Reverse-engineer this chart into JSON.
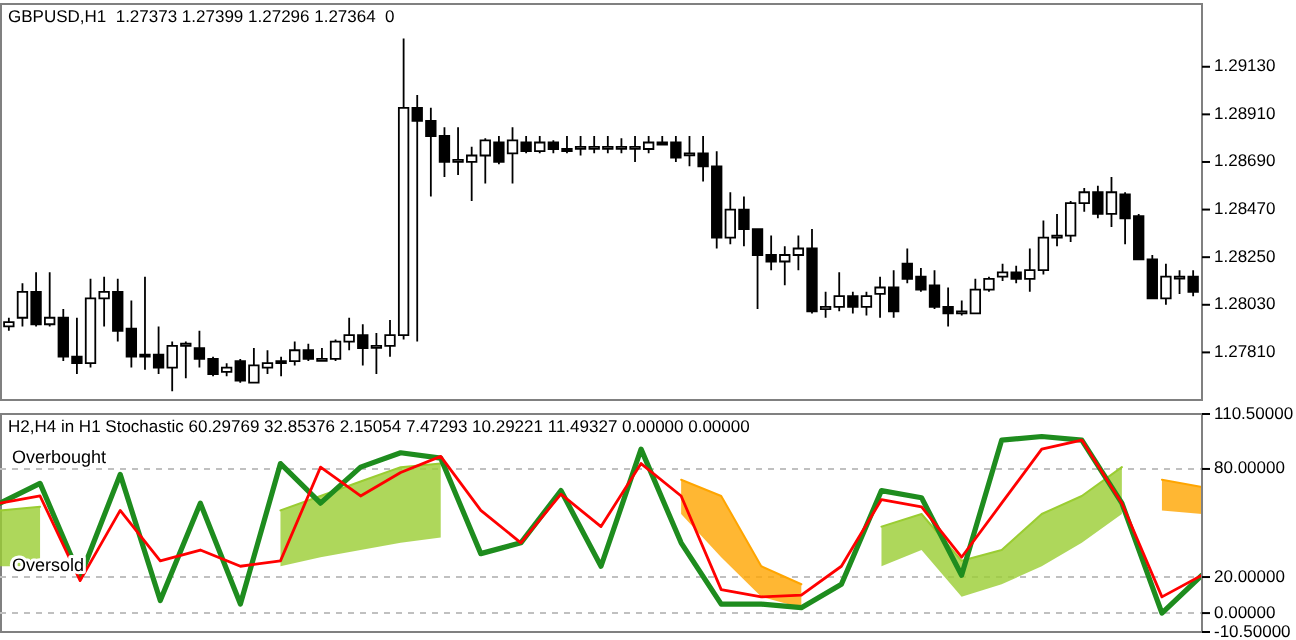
{
  "chart_data": [
    {
      "type": "candlestick",
      "title": "GBPUSD,H1  1.27373 1.27399 1.27296 1.27364  0",
      "tick_labels": "y",
      "categories": [
        null,
        null,
        null,
        null,
        null,
        null,
        null,
        null,
        null,
        null,
        null,
        null,
        null,
        null,
        null,
        null,
        null,
        null,
        null,
        null,
        null,
        null,
        null,
        null,
        null,
        null,
        null,
        null,
        null,
        null,
        null,
        null,
        null,
        null,
        null,
        null,
        null,
        null,
        null,
        null,
        null,
        null,
        null,
        null,
        null,
        null,
        null,
        null,
        null,
        null,
        null,
        null,
        null,
        null,
        null,
        null,
        null,
        null,
        null,
        null,
        null,
        null,
        null,
        null,
        null,
        null,
        null,
        null,
        null,
        null,
        null,
        null,
        null,
        null,
        null,
        null,
        null,
        null,
        null,
        null,
        null,
        null,
        null,
        null,
        null,
        null,
        null,
        null
      ],
      "ylim": [
        1.2759,
        1.2942
      ],
      "yticks": [
        {
          "value": 1.2781,
          "label": "1.27810"
        },
        {
          "value": 1.2803,
          "label": "1.28030"
        },
        {
          "value": 1.2825,
          "label": "1.28250"
        },
        {
          "value": 1.2847,
          "label": "1.28470"
        },
        {
          "value": 1.2869,
          "label": "1.28690"
        },
        {
          "value": 1.2891,
          "label": "1.28910"
        },
        {
          "value": 1.2913,
          "label": "1.29130"
        }
      ],
      "ohlc": [
        [
          1.2793,
          1.2797,
          1.2791,
          1.2795
        ],
        [
          1.2797,
          1.2813,
          1.2793,
          1.2809
        ],
        [
          1.2809,
          1.2818,
          1.2793,
          1.2794
        ],
        [
          1.2794,
          1.2818,
          1.2793,
          1.2797
        ],
        [
          1.2797,
          1.2801,
          1.2777,
          1.2779
        ],
        [
          1.2779,
          1.2797,
          1.2771,
          1.2776
        ],
        [
          1.2776,
          1.2815,
          1.2774,
          1.2806
        ],
        [
          1.2806,
          1.2816,
          1.2793,
          1.2809
        ],
        [
          1.2809,
          1.2815,
          1.2786,
          1.2791
        ],
        [
          1.2792,
          1.2805,
          1.2774,
          1.2779
        ],
        [
          1.278,
          1.2816,
          1.2773,
          1.2779
        ],
        [
          1.278,
          1.2793,
          1.2771,
          1.2774
        ],
        [
          1.2774,
          1.2786,
          1.2763,
          1.2784
        ],
        [
          1.2784,
          1.2786,
          1.2769,
          1.2785
        ],
        [
          1.2783,
          1.2791,
          1.2774,
          1.2778
        ],
        [
          1.2778,
          1.2779,
          1.277,
          1.2771
        ],
        [
          1.2772,
          1.2776,
          1.277,
          1.2774
        ],
        [
          1.2777,
          1.2778,
          1.2767,
          1.2768
        ],
        [
          1.2767,
          1.2783,
          1.2767,
          1.2775
        ],
        [
          1.2774,
          1.2782,
          1.2771,
          1.2776
        ],
        [
          1.2777,
          1.2779,
          1.277,
          1.2776
        ],
        [
          1.2777,
          1.2786,
          1.2775,
          1.2782
        ],
        [
          1.2782,
          1.2785,
          1.2777,
          1.2778
        ],
        [
          1.2778,
          1.2783,
          1.2777,
          1.2778
        ],
        [
          1.2778,
          1.2787,
          1.2777,
          1.2786
        ],
        [
          1.2786,
          1.2797,
          1.2782,
          1.2789
        ],
        [
          1.2789,
          1.2794,
          1.2775,
          1.2783
        ],
        [
          1.2784,
          1.279,
          1.2771,
          1.2784
        ],
        [
          1.2784,
          1.2796,
          1.2779,
          1.2789
        ],
        [
          1.2789,
          1.2926,
          1.2787,
          1.2894
        ],
        [
          1.2894,
          1.29,
          1.2786,
          1.2888
        ],
        [
          1.2888,
          1.2894,
          1.2853,
          1.2881
        ],
        [
          1.2881,
          1.2885,
          1.2862,
          1.2869
        ],
        [
          1.2869,
          1.2885,
          1.2863,
          1.287
        ],
        [
          1.2869,
          1.2876,
          1.2851,
          1.2872
        ],
        [
          1.2872,
          1.288,
          1.2859,
          1.2879
        ],
        [
          1.2878,
          1.2881,
          1.2868,
          1.2869
        ],
        [
          1.2873,
          1.2885,
          1.2859,
          1.2879
        ],
        [
          1.2878,
          1.2881,
          1.2873,
          1.2874
        ],
        [
          1.2874,
          1.2881,
          1.2873,
          1.2878
        ],
        [
          1.2878,
          1.2879,
          1.2873,
          1.2875
        ],
        [
          1.2875,
          1.2881,
          1.2873,
          1.2875
        ],
        [
          1.2876,
          1.2881,
          1.2872,
          1.2876
        ],
        [
          1.2876,
          1.2881,
          1.2873,
          1.2876
        ],
        [
          1.2876,
          1.2881,
          1.2873,
          1.2876
        ],
        [
          1.2876,
          1.288,
          1.2873,
          1.2876
        ],
        [
          1.2876,
          1.2881,
          1.2869,
          1.2876
        ],
        [
          1.2875,
          1.2881,
          1.2873,
          1.2878
        ],
        [
          1.2878,
          1.2881,
          1.2877,
          1.2878
        ],
        [
          1.2878,
          1.2881,
          1.2869,
          1.2871
        ],
        [
          1.2873,
          1.2881,
          1.2867,
          1.2873
        ],
        [
          1.2873,
          1.2881,
          1.286,
          1.2867
        ],
        [
          1.2867,
          1.2874,
          1.2829,
          1.2834
        ],
        [
          1.2834,
          1.2855,
          1.2831,
          1.2847
        ],
        [
          1.2847,
          1.2853,
          1.283,
          1.2838
        ],
        [
          1.2838,
          1.2838,
          1.2801,
          1.2826
        ],
        [
          1.2826,
          1.2835,
          1.2819,
          1.2823
        ],
        [
          1.2823,
          1.283,
          1.2812,
          1.2826
        ],
        [
          1.2826,
          1.2835,
          1.2819,
          1.2829
        ],
        [
          1.2829,
          1.2838,
          1.2799,
          1.28
        ],
        [
          1.2801,
          1.2809,
          1.2797,
          1.2802
        ],
        [
          1.2802,
          1.2818,
          1.28,
          1.2807
        ],
        [
          1.2807,
          1.2809,
          1.2799,
          1.2802
        ],
        [
          1.2802,
          1.2809,
          1.2798,
          1.2807
        ],
        [
          1.2808,
          1.2816,
          1.2797,
          1.2811
        ],
        [
          1.2811,
          1.2819,
          1.2797,
          1.28
        ],
        [
          1.2822,
          1.2829,
          1.2813,
          1.2815
        ],
        [
          1.2816,
          1.282,
          1.2809,
          1.281
        ],
        [
          1.2812,
          1.2819,
          1.2801,
          1.2802
        ],
        [
          1.2802,
          1.2811,
          1.2793,
          1.2799
        ],
        [
          1.28,
          1.2805,
          1.2798,
          1.28
        ],
        [
          1.2799,
          1.2815,
          1.2799,
          1.281
        ],
        [
          1.281,
          1.2816,
          1.2809,
          1.2815
        ],
        [
          1.2816,
          1.2822,
          1.2814,
          1.2818
        ],
        [
          1.2818,
          1.2821,
          1.2813,
          1.2815
        ],
        [
          1.2815,
          1.2829,
          1.2809,
          1.2819
        ],
        [
          1.2819,
          1.2842,
          1.2817,
          1.2834
        ],
        [
          1.2835,
          1.2845,
          1.283,
          1.2835
        ],
        [
          1.2835,
          1.2851,
          1.2832,
          1.285
        ],
        [
          1.285,
          1.2857,
          1.2846,
          1.2855
        ],
        [
          1.2855,
          1.2858,
          1.2843,
          1.2845
        ],
        [
          1.2845,
          1.2862,
          1.2839,
          1.2855
        ],
        [
          1.2854,
          1.2855,
          1.2831,
          1.2843
        ],
        [
          1.2844,
          1.2845,
          1.2824,
          1.2824
        ],
        [
          1.2824,
          1.2826,
          1.2806,
          1.2806
        ],
        [
          1.2806,
          1.2822,
          1.2803,
          1.2816
        ],
        [
          1.2816,
          1.2819,
          1.2808,
          1.2816
        ],
        [
          1.2816,
          1.2819,
          1.2807,
          1.2809
        ]
      ]
    },
    {
      "type": "line",
      "title": "H2,H4 in H1 Stochastic 60.29769 32.85376 2.15054 7.47293 10.29221 11.49327 0.00000 0.00000",
      "tick_labels": "y",
      "categories": [
        null,
        null,
        null,
        null,
        null,
        null,
        null,
        null,
        null,
        null,
        null,
        null,
        null,
        null,
        null,
        null,
        null,
        null,
        null,
        null,
        null,
        null,
        null,
        null,
        null,
        null,
        null,
        null,
        null,
        null,
        null
      ],
      "ylim": [
        -10.5,
        110.5
      ],
      "yticks": [
        {
          "value": -10.5,
          "label": "-10.50000"
        },
        {
          "value": 0,
          "label": "0.00000"
        },
        {
          "value": 20,
          "label": "20.00000"
        },
        {
          "value": 80,
          "label": "80.00000"
        },
        {
          "value": 110.5,
          "label": "110.50000"
        }
      ],
      "ref_lines": [
        {
          "axis": "y",
          "value": 80,
          "label": "Overbought",
          "color": "#c0c0c0",
          "line_style": "dashed"
        },
        {
          "axis": "y",
          "value": 20,
          "label": "Oversold",
          "color": "#c0c0c0",
          "line_style": "dashed"
        },
        {
          "axis": "y",
          "value": 0,
          "color": "#c0c0c0",
          "line_style": "dashed"
        }
      ],
      "series": [
        {
          "color": "#9acd32",
          "values": [
            57,
            59,
            null,
            null,
            null,
            null,
            null,
            57,
            65,
            73,
            81,
            83,
            null,
            null,
            null,
            null,
            null,
            null,
            null,
            null,
            null,
            null,
            48,
            55,
            29,
            35,
            55,
            65,
            81,
            null,
            null
          ],
          "upper": [
            57,
            59,
            null,
            null,
            null,
            null,
            null,
            57,
            65,
            73,
            81,
            83,
            null,
            null,
            null,
            null,
            null,
            null,
            null,
            null,
            null,
            null,
            48,
            55,
            29,
            35,
            55,
            65,
            81,
            null,
            null
          ],
          "lower": [
            26,
            26,
            null,
            null,
            null,
            null,
            null,
            26,
            31,
            35,
            39,
            42,
            null,
            null,
            null,
            null,
            null,
            null,
            null,
            null,
            null,
            null,
            26,
            35,
            9,
            16,
            26,
            39,
            55,
            null,
            null
          ]
        },
        {
          "color": "#ffa500",
          "values": [
            null,
            null,
            null,
            null,
            null,
            null,
            null,
            null,
            null,
            null,
            null,
            null,
            null,
            null,
            null,
            null,
            null,
            74,
            65,
            26,
            16,
            null,
            null,
            null,
            null,
            null,
            null,
            null,
            null,
            74,
            70
          ],
          "upper": [
            null,
            null,
            null,
            null,
            null,
            null,
            null,
            null,
            null,
            null,
            null,
            null,
            null,
            null,
            null,
            null,
            null,
            74,
            65,
            26,
            16,
            null,
            null,
            null,
            null,
            null,
            null,
            null,
            null,
            74,
            70
          ],
          "lower": [
            null,
            null,
            null,
            null,
            null,
            null,
            null,
            null,
            null,
            null,
            null,
            null,
            null,
            null,
            null,
            null,
            null,
            55,
            31,
            9,
            3,
            null,
            null,
            null,
            null,
            null,
            null,
            null,
            null,
            57,
            55
          ]
        },
        {
          "color": "#1e8c1e",
          "values": [
            61,
            72,
            20,
            77,
            7,
            61,
            5,
            83,
            61,
            81,
            89,
            86,
            33,
            39,
            68,
            26,
            91,
            39,
            5,
            5,
            3,
            16,
            68,
            64,
            21,
            96,
            98,
            96,
            61,
            0,
            21
          ]
        },
        {
          "color": "#ff0000",
          "values": [
            61,
            65,
            18,
            57,
            29,
            35,
            26,
            29,
            81,
            65,
            78,
            87,
            57,
            39,
            66,
            48,
            83,
            65,
            13,
            9,
            10,
            26,
            63,
            59,
            31,
            61,
            91,
            96,
            61,
            9,
            21
          ]
        }
      ]
    }
  ]
}
